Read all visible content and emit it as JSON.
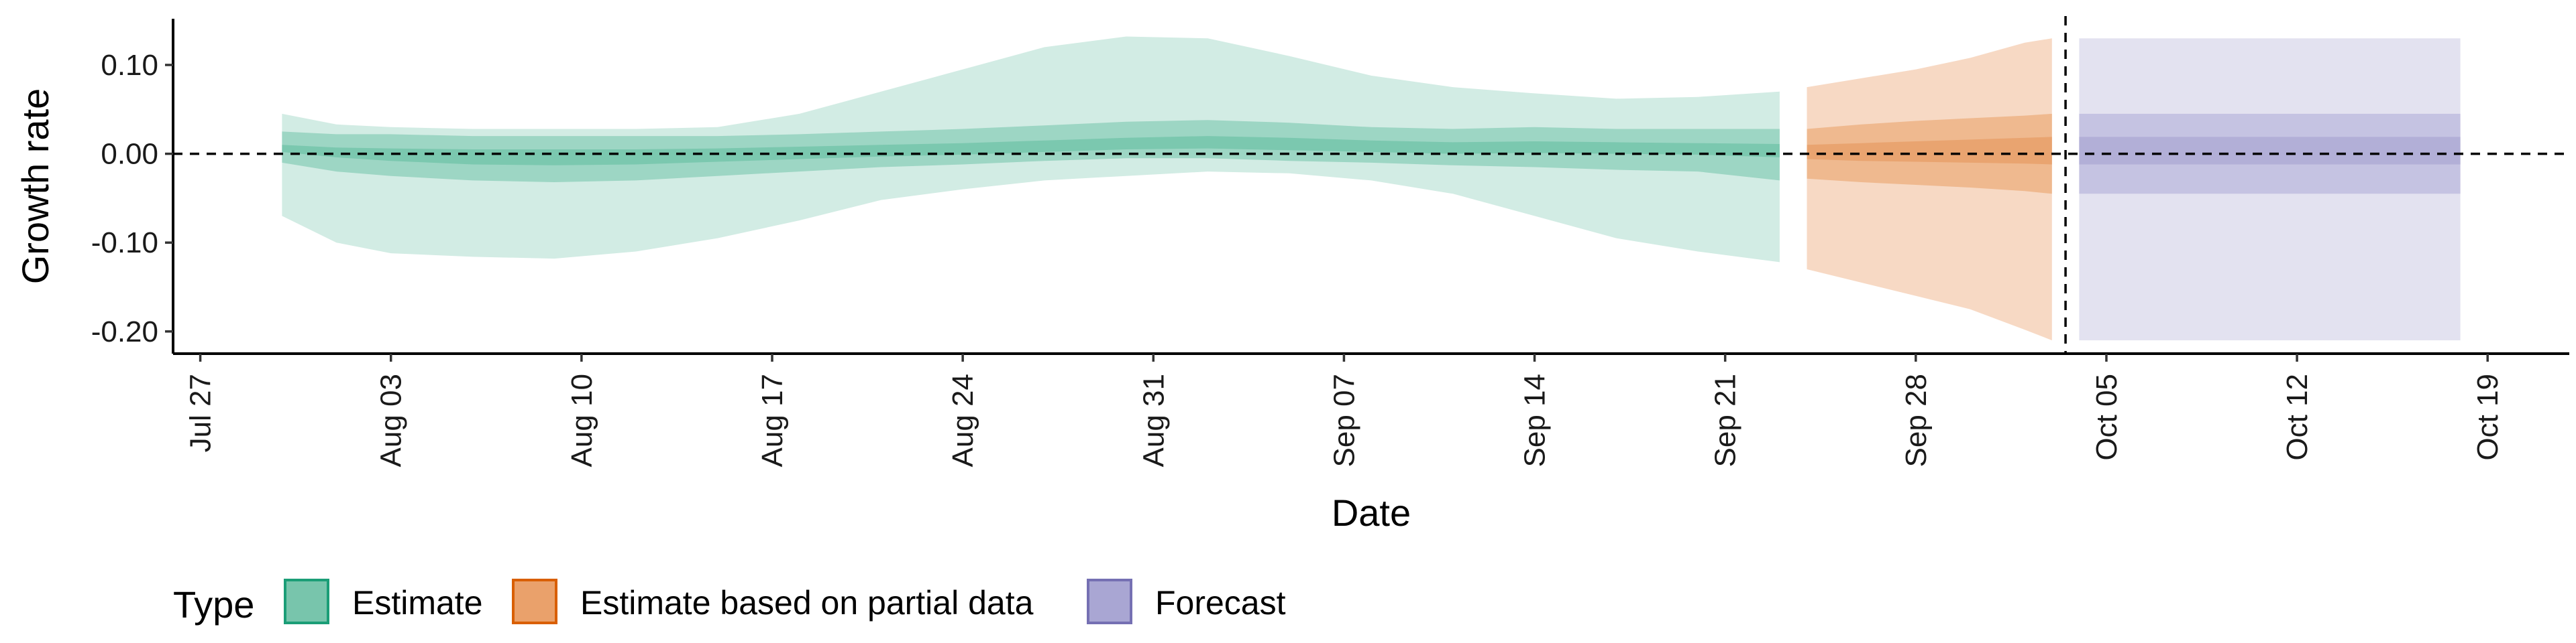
{
  "chart_data": {
    "type": "area",
    "title": "",
    "xlabel": "Date",
    "ylabel": "Growth rate",
    "xlim": [
      "2021-07-26",
      "2021-10-22"
    ],
    "ylim": [
      -0.225,
      0.152
    ],
    "x_ticks": [
      "2021-07-27",
      "2021-08-03",
      "2021-08-10",
      "2021-08-17",
      "2021-08-24",
      "2021-08-31",
      "2021-09-07",
      "2021-09-14",
      "2021-09-21",
      "2021-09-28",
      "2021-10-05",
      "2021-10-12",
      "2021-10-19"
    ],
    "x_tick_labels": [
      "Jul 27",
      "Aug 03",
      "Aug 10",
      "Aug 17",
      "Aug 24",
      "Aug 31",
      "Sep 07",
      "Sep 14",
      "Sep 21",
      "Sep 28",
      "Oct 05",
      "Oct 12",
      "Oct 19"
    ],
    "y_ticks": [
      0.1,
      0.0,
      -0.1,
      -0.2
    ],
    "y_tick_labels": [
      "0.10",
      "0.00",
      "-0.10",
      "-0.20"
    ],
    "reference_lines": [
      {
        "orientation": "horizontal",
        "value": 0.0,
        "style": "dashed"
      },
      {
        "orientation": "vertical",
        "value": "2021-10-03",
        "style": "dashed"
      }
    ],
    "legend": {
      "title": "Type",
      "position": "bottom-left",
      "entries": [
        {
          "label": "Estimate",
          "fill": "#78c5ac",
          "stroke": "#1b9e77"
        },
        {
          "label": "Estimate based on partial data",
          "fill": "#eaa16b",
          "stroke": "#d95f02"
        },
        {
          "label": "Forecast",
          "fill": "#a9a6d3",
          "stroke": "#7570b3"
        }
      ]
    },
    "series": [
      {
        "name": "Estimate",
        "colors": {
          "outer": "#d2ece4",
          "inner": "#9dd6c4",
          "core": "#7bc8af"
        },
        "x": [
          "2021-07-30",
          "2021-08-01",
          "2021-08-03",
          "2021-08-06",
          "2021-08-09",
          "2021-08-12",
          "2021-08-15",
          "2021-08-18",
          "2021-08-21",
          "2021-08-24",
          "2021-08-27",
          "2021-08-30",
          "2021-09-02",
          "2021-09-05",
          "2021-09-08",
          "2021-09-11",
          "2021-09-14",
          "2021-09-17",
          "2021-09-20",
          "2021-09-23"
        ],
        "bands": {
          "outer_upper": [
            0.045,
            0.033,
            0.03,
            0.028,
            0.028,
            0.028,
            0.03,
            0.045,
            0.07,
            0.095,
            0.12,
            0.132,
            0.13,
            0.11,
            0.088,
            0.075,
            0.068,
            0.062,
            0.064,
            0.07
          ],
          "outer_lower": [
            -0.07,
            -0.1,
            -0.112,
            -0.116,
            -0.118,
            -0.11,
            -0.095,
            -0.075,
            -0.052,
            -0.04,
            -0.03,
            -0.025,
            -0.02,
            -0.022,
            -0.03,
            -0.045,
            -0.07,
            -0.095,
            -0.11,
            -0.122
          ],
          "inner_upper": [
            0.025,
            0.022,
            0.022,
            0.02,
            0.02,
            0.02,
            0.02,
            0.022,
            0.025,
            0.028,
            0.032,
            0.036,
            0.038,
            0.035,
            0.03,
            0.028,
            0.03,
            0.028,
            0.028,
            0.028
          ],
          "inner_lower": [
            -0.01,
            -0.02,
            -0.025,
            -0.03,
            -0.032,
            -0.03,
            -0.025,
            -0.02,
            -0.015,
            -0.012,
            -0.008,
            -0.005,
            -0.005,
            -0.008,
            -0.01,
            -0.013,
            -0.015,
            -0.018,
            -0.02,
            -0.03
          ],
          "core_upper": [
            0.01,
            0.007,
            0.006,
            0.005,
            0.005,
            0.005,
            0.006,
            0.008,
            0.01,
            0.012,
            0.015,
            0.018,
            0.02,
            0.018,
            0.015,
            0.013,
            0.014,
            0.013,
            0.012,
            0.011
          ],
          "core_lower": [
            0.002,
            -0.004,
            -0.008,
            -0.012,
            -0.013,
            -0.012,
            -0.009,
            -0.006,
            -0.003,
            -0.001,
            0.002,
            0.005,
            0.006,
            0.004,
            0.002,
            0.0,
            0.001,
            0.0,
            -0.001,
            -0.004
          ]
        }
      },
      {
        "name": "Estimate based on partial data",
        "colors": {
          "outer": "#f7d9c4",
          "inner": "#efb98f",
          "core": "#e9a470"
        },
        "x": [
          "2021-09-24",
          "2021-09-26",
          "2021-09-28",
          "2021-09-30",
          "2021-10-02",
          "2021-10-03"
        ],
        "bands": {
          "outer_upper": [
            0.075,
            0.085,
            0.095,
            0.108,
            0.125,
            0.13
          ],
          "outer_lower": [
            -0.13,
            -0.145,
            -0.16,
            -0.175,
            -0.198,
            -0.21
          ],
          "inner_upper": [
            0.028,
            0.033,
            0.037,
            0.04,
            0.043,
            0.045
          ],
          "inner_lower": [
            -0.028,
            -0.032,
            -0.035,
            -0.038,
            -0.042,
            -0.045
          ],
          "core_upper": [
            0.01,
            0.012,
            0.014,
            0.016,
            0.018,
            0.019
          ],
          "core_lower": [
            -0.006,
            -0.008,
            -0.009,
            -0.01,
            -0.011,
            -0.012
          ]
        }
      },
      {
        "name": "Forecast",
        "colors": {
          "outer": "#e3e2f0",
          "inner": "#c5c3e2",
          "core": "#b2afd7"
        },
        "x": [
          "2021-10-04",
          "2021-10-18"
        ],
        "bands": {
          "outer_upper": [
            0.13,
            0.13
          ],
          "outer_lower": [
            -0.21,
            -0.21
          ],
          "inner_upper": [
            0.045,
            0.045
          ],
          "inner_lower": [
            -0.045,
            -0.045
          ],
          "core_upper": [
            0.019,
            0.019
          ],
          "core_lower": [
            -0.012,
            -0.012
          ]
        }
      }
    ]
  }
}
